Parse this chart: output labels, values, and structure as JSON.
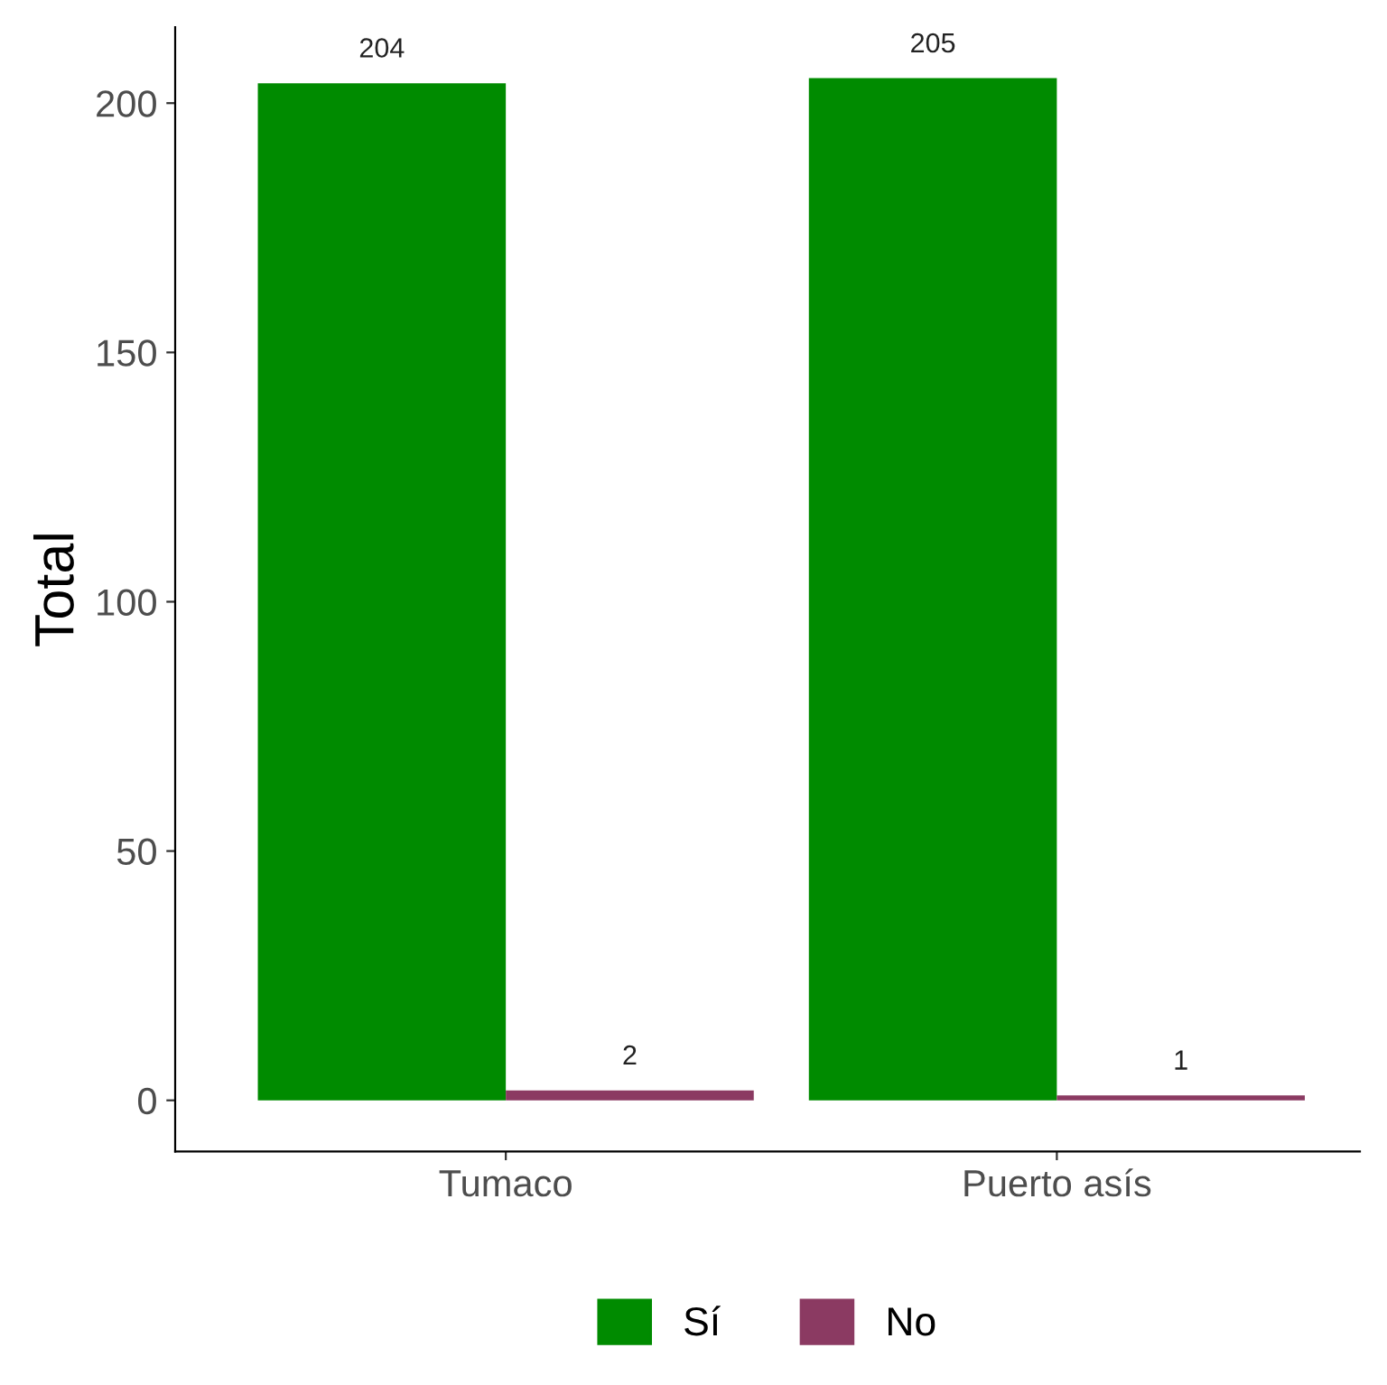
{
  "chart_data": {
    "type": "bar",
    "ylabel": "Total",
    "categories": [
      "Tumaco",
      "Puerto asís"
    ],
    "series": [
      {
        "name": "Sí",
        "color": "#008b00",
        "values": [
          204,
          205
        ]
      },
      {
        "name": "No",
        "color": "#8b3a62",
        "values": [
          2,
          1
        ]
      }
    ],
    "ylim": [
      -10.25,
      215.25
    ],
    "yticks": [
      0,
      50,
      100,
      150,
      200
    ],
    "grid": false,
    "legend": "bottom",
    "data_labels": true
  }
}
